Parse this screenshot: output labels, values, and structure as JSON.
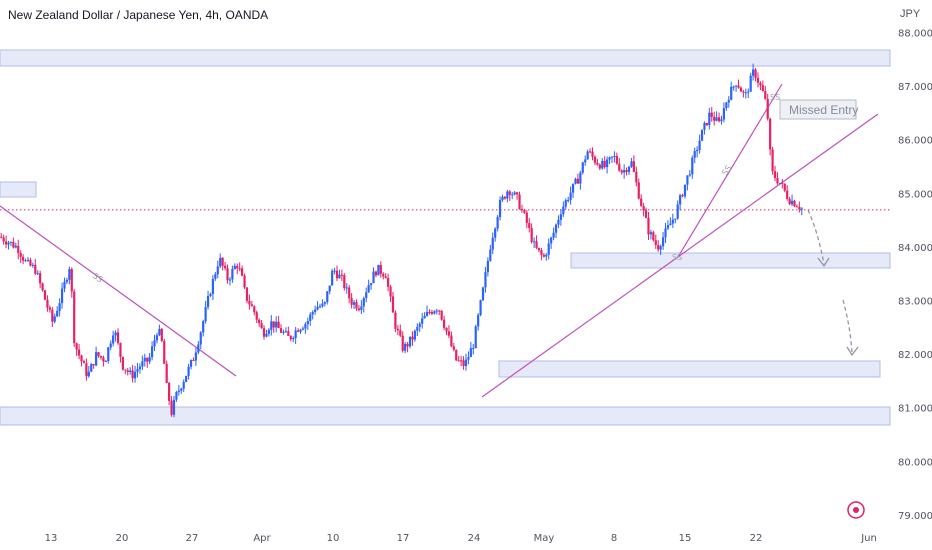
{
  "header": {
    "title": "New Zealand Dollar / Japanese Yen, 4h, OANDA",
    "currency": "JPY"
  },
  "colors": {
    "up": "#2962ff",
    "down": "#e91e63",
    "zone_fill": "#e6eaf8",
    "zone_stroke": "#b2bce8",
    "trendline": "#c14fbf",
    "price_line": "#e91e63"
  },
  "chart_data": {
    "type": "candlestick",
    "ylim": [
      78.9,
      88.3
    ],
    "yticks": [
      {
        "label": "88.000",
        "value": 88
      },
      {
        "label": "87.000",
        "value": 87
      },
      {
        "label": "86.000",
        "value": 86
      },
      {
        "label": "85.000",
        "value": 85
      },
      {
        "label": "84.000",
        "value": 84
      },
      {
        "label": "83.000",
        "value": 83
      },
      {
        "label": "82.000",
        "value": 82
      },
      {
        "label": "81.000",
        "value": 81
      },
      {
        "label": "80.000",
        "value": 80
      },
      {
        "label": "79.000",
        "value": 79
      }
    ],
    "xticks": [
      "13",
      "20",
      "27",
      "Apr",
      "10",
      "17",
      "24",
      "May",
      "8",
      "15",
      "22",
      "Jun"
    ],
    "current_price": 84.7,
    "price_path": [
      [
        0,
        84.2
      ],
      [
        2,
        84.0
      ],
      [
        3,
        83.7
      ],
      [
        4,
        83.6
      ],
      [
        5,
        83.1
      ],
      [
        6,
        82.6
      ],
      [
        7,
        83.1
      ],
      [
        8,
        83.7
      ],
      [
        8.5,
        82.2
      ],
      [
        9,
        82.0
      ],
      [
        10,
        81.6
      ],
      [
        11,
        82.0
      ],
      [
        12,
        81.9
      ],
      [
        13,
        82.5
      ],
      [
        14,
        81.8
      ],
      [
        15,
        81.6
      ],
      [
        16,
        81.8
      ],
      [
        17,
        81.9
      ],
      [
        18,
        82.5
      ],
      [
        18.5,
        82.2
      ],
      [
        19,
        81.4
      ],
      [
        19.6,
        80.9
      ],
      [
        20,
        81.2
      ],
      [
        22,
        81.9
      ],
      [
        23,
        82.5
      ],
      [
        24,
        83.2
      ],
      [
        25,
        83.8
      ],
      [
        26,
        83.4
      ],
      [
        27,
        83.7
      ],
      [
        27.5,
        83.5
      ],
      [
        28,
        83.1
      ],
      [
        29,
        82.8
      ],
      [
        30,
        82.4
      ],
      [
        31,
        82.6
      ],
      [
        33,
        82.3
      ],
      [
        34,
        82.5
      ],
      [
        35,
        82.6
      ],
      [
        36,
        82.9
      ],
      [
        37,
        82.9
      ],
      [
        38,
        83.6
      ],
      [
        39,
        83.4
      ],
      [
        40,
        83.0
      ],
      [
        41,
        82.9
      ],
      [
        42,
        83.3
      ],
      [
        43,
        83.6
      ],
      [
        44,
        83.5
      ],
      [
        45,
        82.6
      ],
      [
        46,
        82.1
      ],
      [
        47,
        82.3
      ],
      [
        48,
        82.6
      ],
      [
        49,
        82.8
      ],
      [
        50,
        82.9
      ],
      [
        51,
        82.4
      ],
      [
        52,
        81.9
      ],
      [
        53,
        81.8
      ],
      [
        54,
        82.2
      ],
      [
        55,
        83.1
      ],
      [
        56,
        84.1
      ],
      [
        57,
        84.8
      ],
      [
        58,
        85.1
      ],
      [
        59,
        84.9
      ],
      [
        60,
        84.5
      ],
      [
        61,
        84.0
      ],
      [
        62,
        83.8
      ],
      [
        63,
        84.2
      ],
      [
        64,
        84.7
      ],
      [
        65,
        85.0
      ],
      [
        66,
        85.3
      ],
      [
        67,
        85.8
      ],
      [
        68,
        85.6
      ],
      [
        69,
        85.5
      ],
      [
        70,
        85.7
      ],
      [
        71,
        85.4
      ],
      [
        72,
        85.6
      ],
      [
        73,
        84.9
      ],
      [
        74,
        84.3
      ],
      [
        75,
        84.0
      ],
      [
        76,
        84.3
      ],
      [
        77,
        84.6
      ],
      [
        78,
        85.1
      ],
      [
        79,
        85.6
      ],
      [
        80,
        86.1
      ],
      [
        81,
        86.5
      ],
      [
        82,
        86.3
      ],
      [
        83,
        86.8
      ],
      [
        84,
        87.1
      ],
      [
        85,
        86.8
      ],
      [
        86,
        87.3
      ],
      [
        87,
        86.9
      ],
      [
        87.5,
        86.6
      ],
      [
        88,
        85.4
      ],
      [
        89,
        85.2
      ],
      [
        90,
        84.9
      ],
      [
        91,
        84.8
      ],
      [
        91.6,
        84.7
      ]
    ],
    "zones": [
      {
        "top": 87.72,
        "bottom": 87.42
      },
      {
        "top": 85.05,
        "bottom": 84.78
      },
      {
        "top": 83.88,
        "bottom": 83.62
      },
      {
        "top": 81.9,
        "bottom": 81.6
      },
      {
        "top": 81.05,
        "bottom": 80.72
      }
    ],
    "annotations": {
      "missed_entry": "Missed Entry",
      "ss_marks": [
        "SS",
        "SS",
        "SS",
        "SS"
      ]
    }
  }
}
